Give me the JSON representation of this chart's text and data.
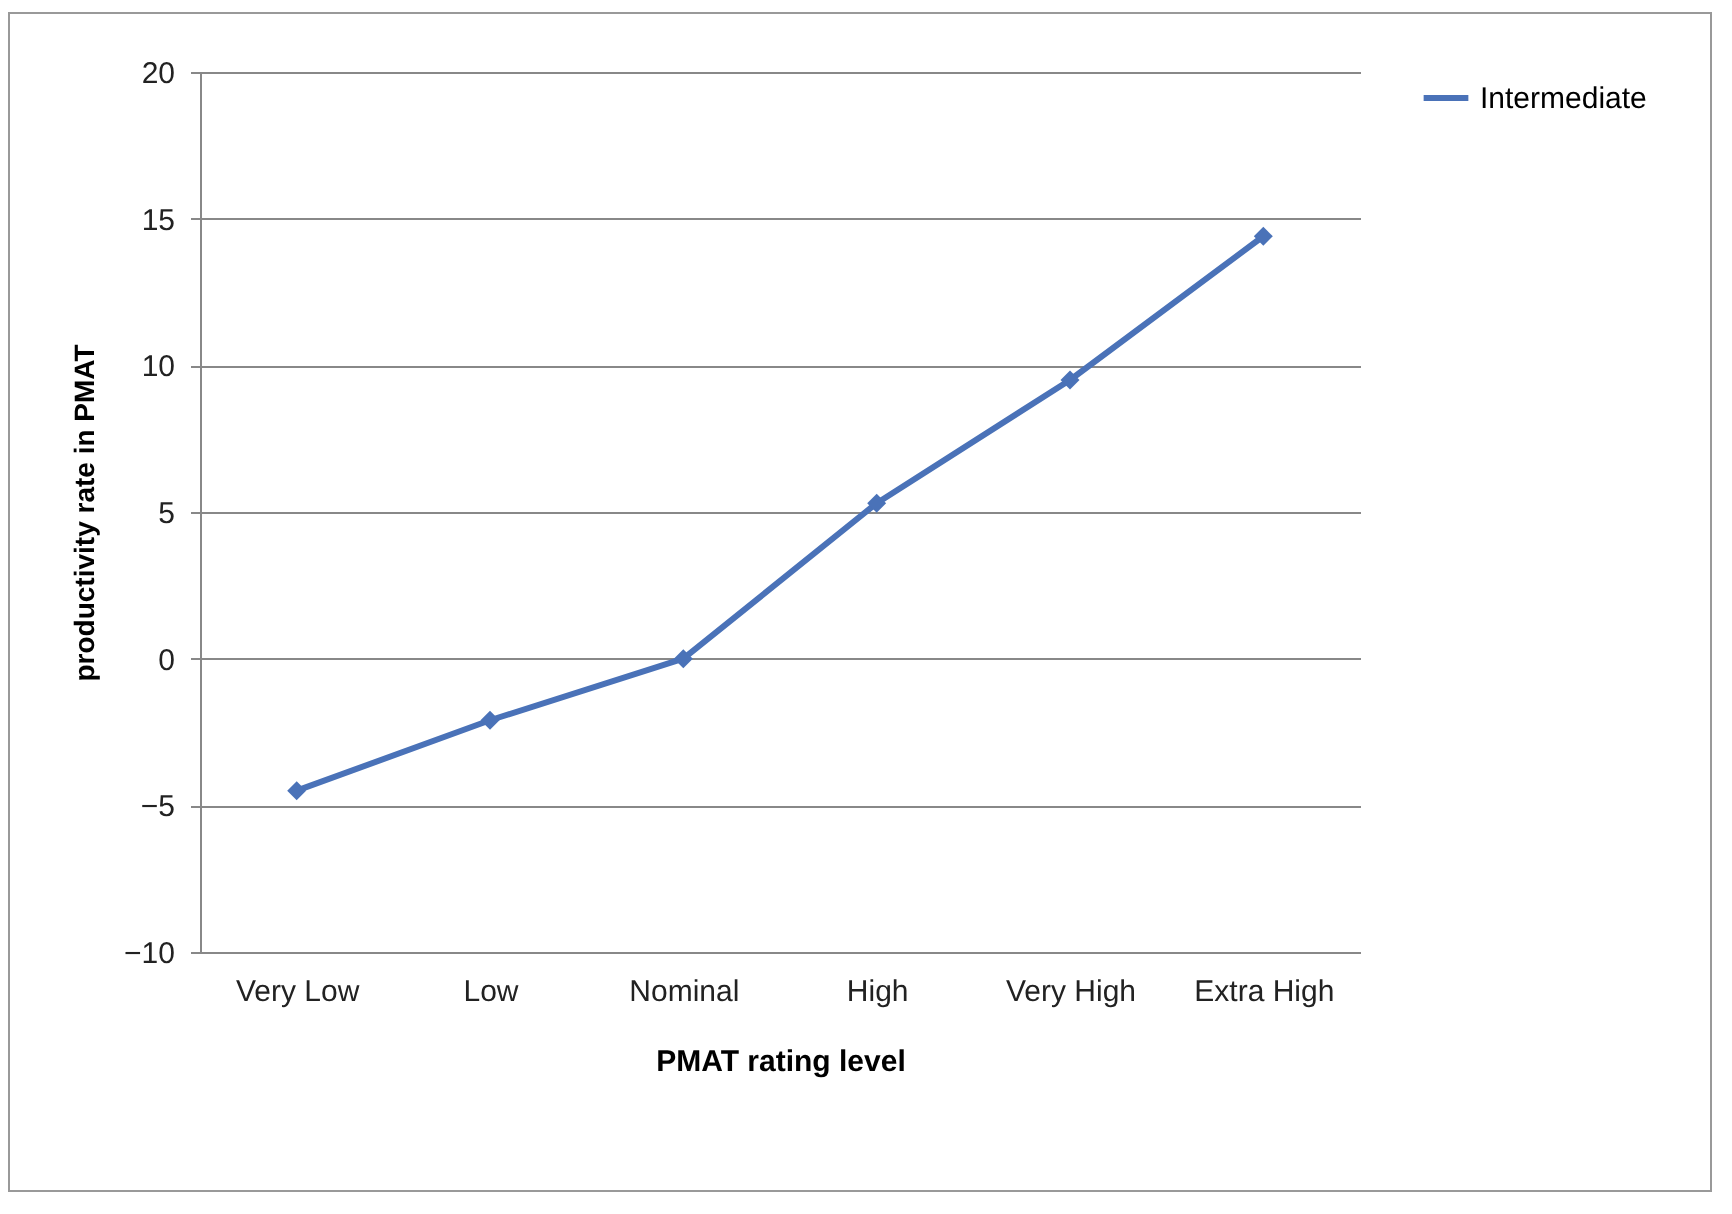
{
  "chart_data": {
    "type": "line",
    "xlabel": "PMAT rating level",
    "ylabel": "productivity rate in PMAT",
    "categories": [
      "Very Low",
      "Low",
      "Nominal",
      "High",
      "Very High",
      "Extra High"
    ],
    "series": [
      {
        "name": "Intermediate",
        "color": "#4a72b8",
        "values": [
          -4.5,
          -2.1,
          0,
          5.3,
          9.5,
          14.4
        ]
      }
    ],
    "ylim": [
      -10,
      20
    ],
    "yticks": [
      -10,
      -5,
      0,
      5,
      10,
      15,
      20
    ],
    "grid": "y",
    "legend": "right",
    "marker": "diamond",
    "line_style": "solid"
  }
}
